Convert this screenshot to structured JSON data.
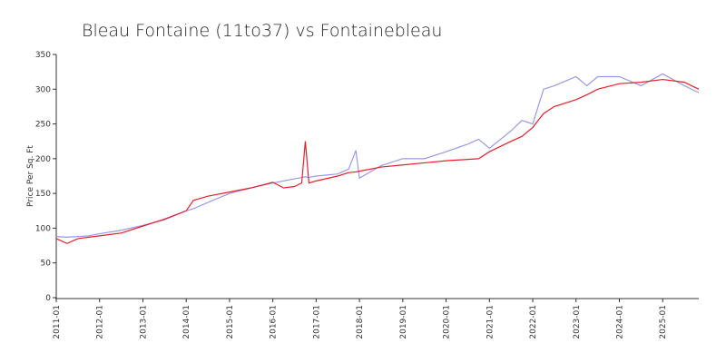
{
  "chart_data": {
    "type": "line",
    "title": "Bleau Fontaine (11to37) vs Fontainebleau",
    "y_label": "Price Per Sq. Ft",
    "x": [
      "2011-01",
      "2011-04",
      "2011-07",
      "2011-10",
      "2012-01",
      "2012-07",
      "2013-01",
      "2013-07",
      "2014-01",
      "2014-03",
      "2014-07",
      "2015-01",
      "2015-07",
      "2016-01",
      "2016-04",
      "2016-07",
      "2016-09",
      "2016-10",
      "2016-11",
      "2017-01",
      "2017-07",
      "2017-10",
      "2017-12",
      "2018-01",
      "2018-07",
      "2019-01",
      "2019-07",
      "2020-01",
      "2020-07",
      "2020-10",
      "2021-01",
      "2021-07",
      "2021-10",
      "2022-01",
      "2022-04",
      "2022-07",
      "2023-01",
      "2023-04",
      "2023-07",
      "2024-01",
      "2024-07",
      "2025-01",
      "2025-07",
      "2025-11"
    ],
    "series": [
      {
        "color": "#9999e8",
        "values": [
          88,
          87,
          88,
          89,
          92,
          97,
          104,
          112,
          125,
          128,
          137,
          150,
          158,
          165,
          168,
          171,
          173,
          174,
          173,
          175,
          178,
          185,
          212,
          172,
          190,
          200,
          200,
          210,
          221,
          228,
          215,
          240,
          255,
          250,
          300,
          305,
          318,
          305,
          318,
          318,
          305,
          322,
          305,
          295
        ]
      },
      {
        "color": "#e8202a",
        "values": [
          85,
          78,
          85,
          87,
          89,
          93,
          103,
          113,
          125,
          140,
          146,
          152,
          158,
          166,
          158,
          160,
          165,
          225,
          165,
          168,
          175,
          180,
          181,
          182,
          188,
          191,
          194,
          197,
          199,
          200,
          210,
          225,
          232,
          245,
          265,
          275,
          285,
          292,
          300,
          308,
          310,
          314,
          310,
          300
        ]
      }
    ],
    "xlim": [
      "2011-01",
      "2025-11"
    ],
    "xticks": [
      "2011-01",
      "2012-01",
      "2013-01",
      "2014-01",
      "2015-01",
      "2016-01",
      "2017-01",
      "2018-01",
      "2019-01",
      "2020-01",
      "2021-01",
      "2022-01",
      "2023-01",
      "2024-01",
      "2025-01"
    ],
    "ylim": [
      0,
      350
    ],
    "yticks": [
      0,
      50,
      100,
      150,
      200,
      250,
      300,
      350
    ],
    "grid": false
  }
}
